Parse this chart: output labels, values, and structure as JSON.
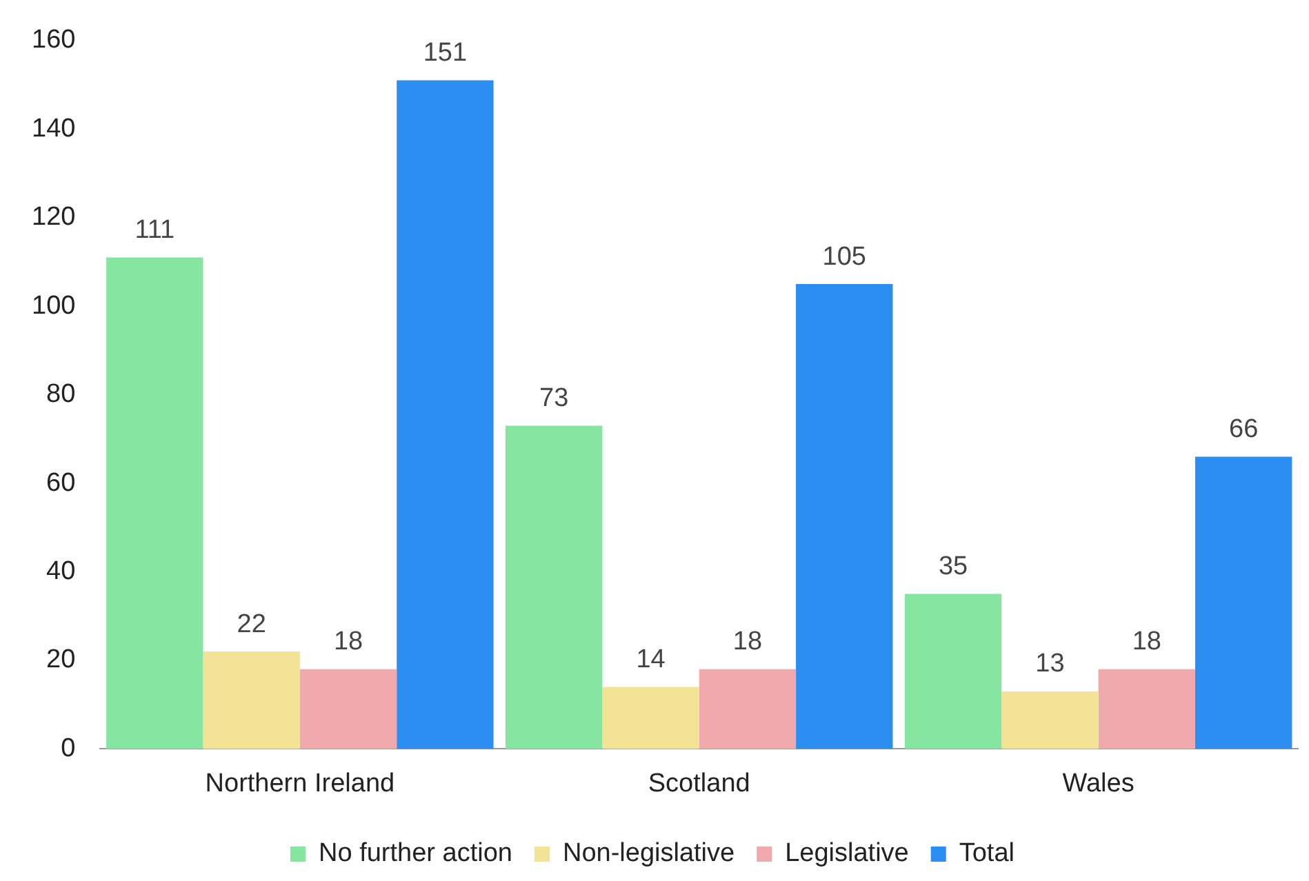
{
  "chart_data": {
    "type": "bar",
    "categories": [
      "Northern Ireland",
      "Scotland",
      "Wales"
    ],
    "series": [
      {
        "name": "No further action",
        "color": "#86e5a0",
        "values": [
          111,
          73,
          35
        ]
      },
      {
        "name": "Non-legislative",
        "color": "#f3e396",
        "values": [
          22,
          14,
          13
        ]
      },
      {
        "name": "Legislative",
        "color": "#f0aaad",
        "values": [
          18,
          18,
          18
        ]
      },
      {
        "name": "Total",
        "color": "#2b8ef0",
        "values": [
          151,
          105,
          66
        ]
      }
    ],
    "ylim": [
      0,
      160
    ],
    "yticks": [
      0,
      20,
      40,
      60,
      80,
      100,
      120,
      140,
      160
    ],
    "grid": false,
    "legend": "bottom",
    "data_labels": true
  }
}
